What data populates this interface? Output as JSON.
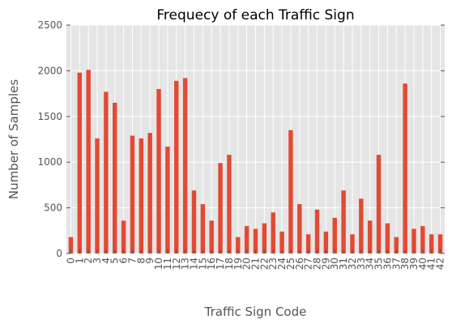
{
  "chart_data": {
    "type": "bar",
    "title": "Frequecy of each Traffic Sign",
    "xlabel": "Traffic Sign Code",
    "ylabel": "Number of Samples",
    "ylim": [
      0,
      2500
    ],
    "yticks": [
      0,
      500,
      1000,
      1500,
      2000,
      2500
    ],
    "grid": true,
    "categories": [
      "0",
      "1",
      "2",
      "3",
      "4",
      "5",
      "6",
      "7",
      "8",
      "9",
      "10",
      "11",
      "12",
      "13",
      "14",
      "15",
      "16",
      "17",
      "18",
      "19",
      "20",
      "21",
      "22",
      "23",
      "24",
      "25",
      "26",
      "27",
      "28",
      "29",
      "30",
      "31",
      "32",
      "33",
      "34",
      "35",
      "36",
      "37",
      "38",
      "39",
      "40",
      "41",
      "42"
    ],
    "values": [
      180,
      1980,
      2010,
      1260,
      1770,
      1650,
      360,
      1290,
      1260,
      1320,
      1800,
      1170,
      1890,
      1920,
      690,
      540,
      360,
      990,
      1080,
      180,
      300,
      270,
      330,
      450,
      240,
      1350,
      540,
      210,
      480,
      240,
      390,
      690,
      210,
      600,
      360,
      1080,
      330,
      180,
      1860,
      270,
      300,
      210,
      210
    ],
    "colors": {
      "bar": "#E24A33",
      "plot_background": "#E5E5E5",
      "grid": "#FFFFFF"
    }
  }
}
